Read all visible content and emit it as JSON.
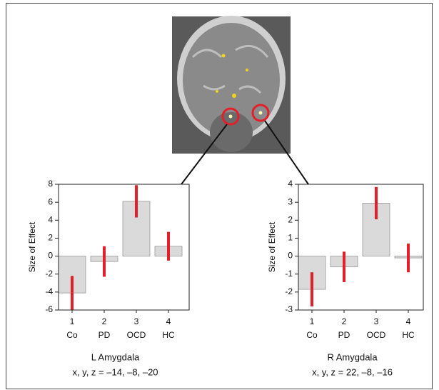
{
  "chart_data": [
    {
      "type": "bar",
      "ylabel": "Size of Effect",
      "categories": [
        "1",
        "2",
        "3",
        "4"
      ],
      "category_names": [
        "Co",
        "PD",
        "OCD",
        "HC"
      ],
      "values": [
        -4.1,
        -0.6,
        6.1,
        1.1
      ],
      "errors": [
        1.9,
        1.7,
        1.8,
        1.6
      ],
      "color": "#dadada",
      "error_color": "#e3202a",
      "ylim": [
        -6,
        8
      ],
      "yticks": [
        -6,
        -4,
        -2,
        0,
        2,
        4,
        6,
        8
      ],
      "title": "L Amygdala",
      "subtitle": "x, y, z = –14, –8, –20"
    },
    {
      "type": "bar",
      "ylabel": "Size of Effect",
      "categories": [
        "1",
        "2",
        "3",
        "4"
      ],
      "category_names": [
        "Co",
        "PD",
        "OCD",
        "HC"
      ],
      "values": [
        -1.85,
        -0.6,
        2.95,
        -0.1
      ],
      "errors": [
        0.95,
        0.85,
        0.9,
        0.8
      ],
      "color": "#dadada",
      "error_color": "#e3202a",
      "ylim": [
        -3,
        4
      ],
      "yticks": [
        -3,
        -2,
        -1,
        0,
        1,
        2,
        3,
        4
      ],
      "title": "R Amygdala",
      "subtitle": "x, y, z = 22, –8, –16"
    }
  ]
}
